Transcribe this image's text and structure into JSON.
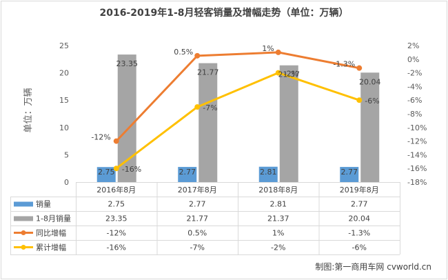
{
  "chart_data": {
    "type": "bar",
    "title": "2016-2019年1-8月轻客销量及增幅走势（单位：万辆）",
    "ylabel": "单位：万辆",
    "ylim": [
      0,
      25
    ],
    "yticks": [
      0,
      5,
      10,
      15,
      20,
      25
    ],
    "y2lim": [
      -18,
      2
    ],
    "y2ticks": [
      2,
      0,
      -2,
      -4,
      -6,
      -8,
      -10,
      -12,
      -14,
      -16,
      -18
    ],
    "y2tick_labels": [
      "2%",
      "0%",
      "-2%",
      "-4%",
      "-6%",
      "-8%",
      "-10%",
      "-12%",
      "-14%",
      "-16%",
      "-18%"
    ],
    "categories": [
      "2016年8月",
      "2017年8月",
      "2018年8月",
      "2019年8月"
    ],
    "series": [
      {
        "name": "销量",
        "kind": "bar",
        "axis": "left",
        "color": "#5b9bd5",
        "values": [
          2.75,
          2.77,
          2.81,
          2.77
        ],
        "labels": [
          "2.75",
          "2.77",
          "2.81",
          "2.77"
        ]
      },
      {
        "name": "1-8月销量",
        "kind": "bar",
        "axis": "left",
        "color": "#a5a5a5",
        "values": [
          23.35,
          21.77,
          21.37,
          20.04
        ],
        "labels": [
          "23.35",
          "21.77",
          "21.37",
          "20.04"
        ]
      },
      {
        "name": "同比增幅",
        "kind": "line",
        "axis": "right",
        "color": "#ed7d31",
        "values": [
          -12,
          0.5,
          1,
          -1.3
        ],
        "labels": [
          "-12%",
          "0.5%",
          "1%",
          "-1.3%"
        ]
      },
      {
        "name": "累计增幅",
        "kind": "line",
        "axis": "right",
        "color": "#ffc000",
        "values": [
          -16,
          -7,
          -2,
          -6
        ],
        "labels": [
          "-16%",
          "-7%",
          "-2%",
          "-6%"
        ]
      }
    ],
    "legend": "table-bottom",
    "source": "制图:第一商用车网 cvworld.cn"
  }
}
